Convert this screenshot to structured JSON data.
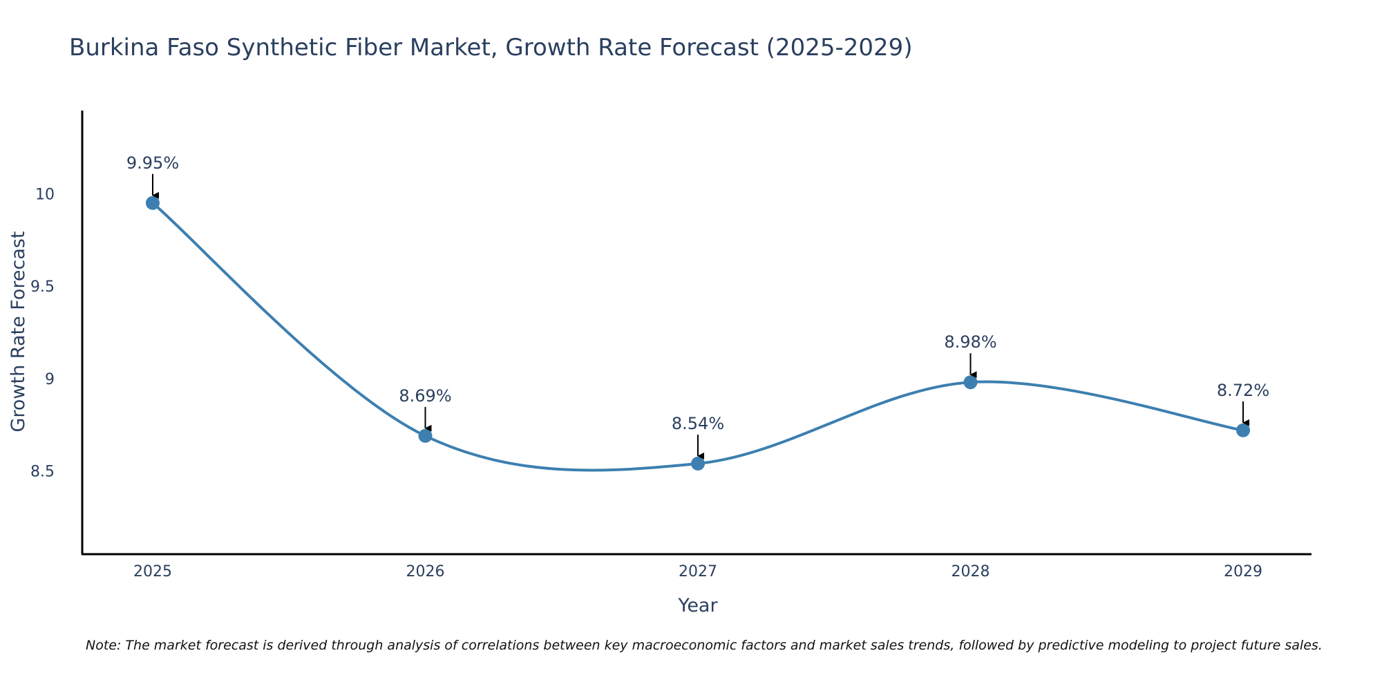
{
  "chart_data": {
    "type": "line",
    "title": "Burkina Faso Synthetic Fiber Market, Growth Rate Forecast (2025-2029)",
    "xlabel": "Year",
    "ylabel": "Growth Rate Forecast",
    "categories": [
      "2025",
      "2026",
      "2027",
      "2028",
      "2029"
    ],
    "values": [
      9.95,
      8.69,
      8.54,
      8.98,
      8.72
    ],
    "data_labels": [
      "9.95%",
      "8.69%",
      "8.54%",
      "8.98%",
      "8.72%"
    ],
    "y_ticks": [
      8.5,
      9,
      9.5,
      10
    ],
    "y_tick_labels": [
      "8.5",
      "9",
      "9.5",
      "10"
    ],
    "ylim": [
      8.05,
      10.45
    ],
    "grid": false,
    "line_shape": "spline",
    "line_color": "#3d7fb0",
    "marker_color": "#3d7fb0",
    "arrow_color": "#000000",
    "note": "Note: The market forecast is derived through analysis of correlations between key macroeconomic factors and market sales trends, followed by predictive modeling to project future sales."
  }
}
